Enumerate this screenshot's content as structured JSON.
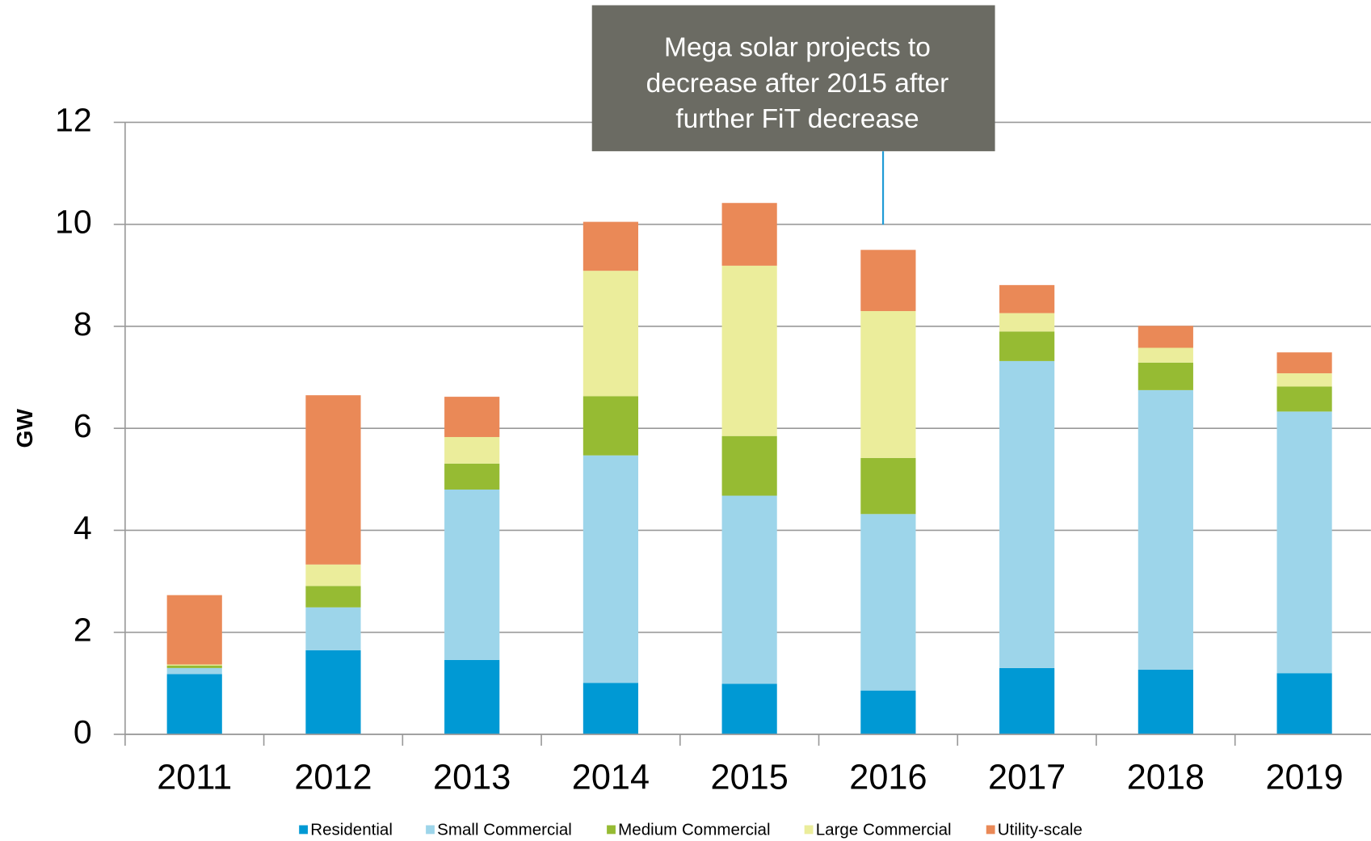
{
  "chart_data": {
    "type": "stacked-bar",
    "annotation": [
      "Mega solar projects to",
      "decrease after 2015 after",
      "further FiT decrease"
    ],
    "y_label": "GW",
    "categories": [
      "2011",
      "2012",
      "2013",
      "2014",
      "2015",
      "2016",
      "2017",
      "2018",
      "2019"
    ],
    "series": [
      {
        "name": "Residential",
        "color": "#0099d4",
        "values": [
          1.18,
          1.65,
          1.46,
          1.01,
          0.99,
          0.86,
          1.3,
          1.27,
          1.2
        ]
      },
      {
        "name": "Small Commercial",
        "color": "#9dd5ea",
        "values": [
          0.12,
          0.84,
          3.34,
          4.46,
          3.69,
          3.46,
          6.02,
          5.48,
          5.13
        ]
      },
      {
        "name": "Medium Commercial",
        "color": "#96bb33",
        "values": [
          0.05,
          0.42,
          0.51,
          1.16,
          1.17,
          1.1,
          0.58,
          0.54,
          0.49
        ]
      },
      {
        "name": "Large Commercial",
        "color": "#ebed9b",
        "values": [
          0.02,
          0.42,
          0.52,
          2.46,
          3.34,
          2.88,
          0.36,
          0.29,
          0.26
        ]
      },
      {
        "name": "Utility-scale",
        "color": "#ea8957",
        "values": [
          1.36,
          3.32,
          0.79,
          0.96,
          1.23,
          1.2,
          0.55,
          0.43,
          0.41
        ]
      }
    ],
    "ylim": [
      0,
      12
    ],
    "yticks": [
      0,
      2,
      4,
      6,
      8,
      10,
      12
    ],
    "grid": true
  }
}
